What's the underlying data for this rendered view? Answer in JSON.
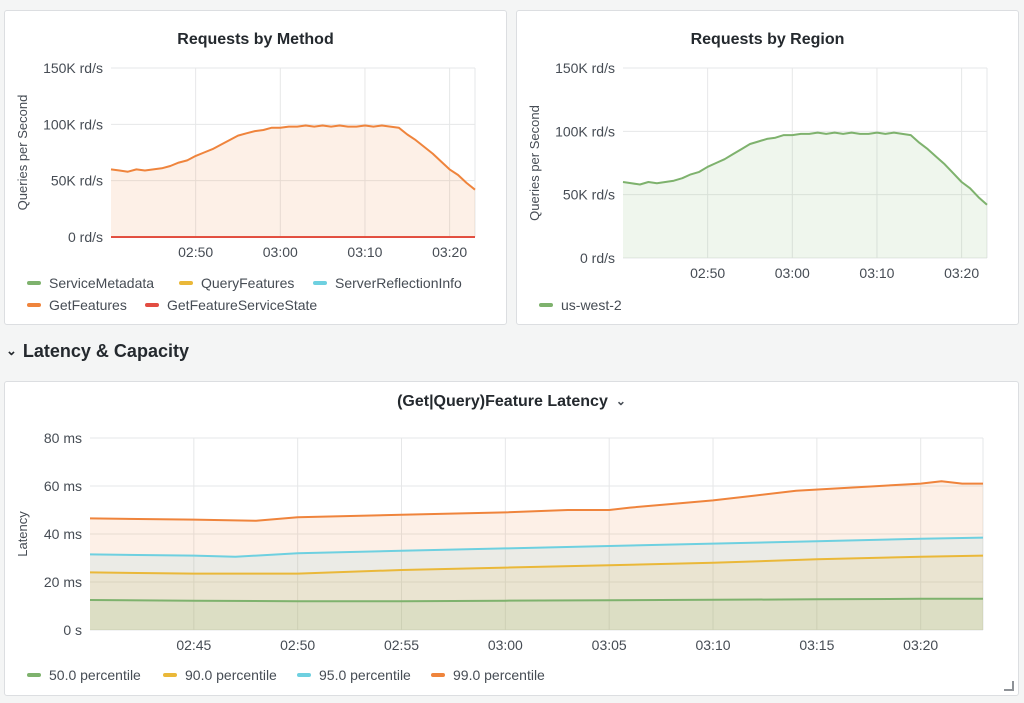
{
  "row": {
    "title": "Latency & Capacity",
    "chevron": "chevron-down-icon"
  },
  "colors": {
    "green": "#7eb26d",
    "yellow": "#eab839",
    "blue": "#6ed0e0",
    "orange": "#ef843c",
    "red": "#e24d42",
    "grid": "#e6e7e8"
  },
  "chart_data": [
    {
      "id": "method",
      "type": "area",
      "title": "Requests by Method",
      "ylabel": "Queries per Second",
      "xlabel": "",
      "ylim": [
        0,
        150000
      ],
      "yticks": [
        "0 rd/s",
        "50K rd/s",
        "100K rd/s",
        "150K rd/s"
      ],
      "xticks": [
        "02:50",
        "03:00",
        "03:10",
        "03:20"
      ],
      "x_range": [
        "02:40",
        "03:23"
      ],
      "grid": true,
      "legend_position": "bottom",
      "series": [
        {
          "name": "ServiceMetadata",
          "color": "#7eb26d",
          "x": [],
          "values": []
        },
        {
          "name": "QueryFeatures",
          "color": "#eab839",
          "x": [],
          "values": []
        },
        {
          "name": "ServerReflectionInfo",
          "color": "#6ed0e0",
          "x": [],
          "values": []
        },
        {
          "name": "GetFeatures",
          "color": "#ef843c",
          "fill": true,
          "x": [
            "02:40",
            "02:41",
            "02:42",
            "02:43",
            "02:44",
            "02:45",
            "02:46",
            "02:47",
            "02:48",
            "02:49",
            "02:50",
            "02:51",
            "02:52",
            "02:53",
            "02:54",
            "02:55",
            "02:56",
            "02:57",
            "02:58",
            "02:59",
            "03:00",
            "03:01",
            "03:02",
            "03:03",
            "03:04",
            "03:05",
            "03:06",
            "03:07",
            "03:08",
            "03:09",
            "03:10",
            "03:11",
            "03:12",
            "03:13",
            "03:14",
            "03:15",
            "03:16",
            "03:17",
            "03:18",
            "03:19",
            "03:20",
            "03:21",
            "03:22",
            "03:23"
          ],
          "values": [
            60000,
            59000,
            58000,
            60000,
            59000,
            60000,
            61000,
            63000,
            66000,
            68000,
            72000,
            75000,
            78000,
            82000,
            86000,
            90000,
            92000,
            94000,
            95000,
            97000,
            97000,
            98000,
            98000,
            99000,
            98000,
            99000,
            98000,
            99000,
            98000,
            98000,
            99000,
            98000,
            99000,
            98000,
            97000,
            91000,
            86000,
            80000,
            74000,
            67000,
            60000,
            55000,
            48000,
            42000
          ]
        },
        {
          "name": "GetFeatureServiceState",
          "color": "#e24d42",
          "x": [
            "02:40",
            "03:23"
          ],
          "values": [
            0,
            0
          ]
        }
      ]
    },
    {
      "id": "region",
      "type": "area",
      "title": "Requests by Region",
      "ylabel": "Queries per Second",
      "xlabel": "",
      "ylim": [
        0,
        150000
      ],
      "yticks": [
        "0 rd/s",
        "50K rd/s",
        "100K rd/s",
        "150K rd/s"
      ],
      "xticks": [
        "02:50",
        "03:00",
        "03:10",
        "03:20"
      ],
      "x_range": [
        "02:40",
        "03:23"
      ],
      "grid": true,
      "legend_position": "bottom",
      "series": [
        {
          "name": "us-west-2",
          "color": "#7eb26d",
          "fill": true,
          "x": [
            "02:40",
            "02:41",
            "02:42",
            "02:43",
            "02:44",
            "02:45",
            "02:46",
            "02:47",
            "02:48",
            "02:49",
            "02:50",
            "02:51",
            "02:52",
            "02:53",
            "02:54",
            "02:55",
            "02:56",
            "02:57",
            "02:58",
            "02:59",
            "03:00",
            "03:01",
            "03:02",
            "03:03",
            "03:04",
            "03:05",
            "03:06",
            "03:07",
            "03:08",
            "03:09",
            "03:10",
            "03:11",
            "03:12",
            "03:13",
            "03:14",
            "03:15",
            "03:16",
            "03:17",
            "03:18",
            "03:19",
            "03:20",
            "03:21",
            "03:22",
            "03:23"
          ],
          "values": [
            60000,
            59000,
            58000,
            60000,
            59000,
            60000,
            61000,
            63000,
            66000,
            68000,
            72000,
            75000,
            78000,
            82000,
            86000,
            90000,
            92000,
            94000,
            95000,
            97000,
            97000,
            98000,
            98000,
            99000,
            98000,
            99000,
            98000,
            99000,
            98000,
            98000,
            99000,
            98000,
            99000,
            98000,
            97000,
            91000,
            86000,
            80000,
            74000,
            67000,
            60000,
            55000,
            48000,
            42000
          ]
        }
      ]
    },
    {
      "id": "latency",
      "type": "area",
      "title": "(Get|Query)Feature Latency",
      "ylabel": "Latency",
      "xlabel": "",
      "ylim": [
        0,
        80
      ],
      "yticks": [
        "0 s",
        "20 ms",
        "40 ms",
        "60 ms",
        "80 ms"
      ],
      "xticks": [
        "02:45",
        "02:50",
        "02:55",
        "03:00",
        "03:05",
        "03:10",
        "03:15",
        "03:20"
      ],
      "x_range": [
        "02:40",
        "03:23"
      ],
      "grid": true,
      "legend_position": "bottom",
      "series": [
        {
          "name": "50.0 percentile",
          "color": "#7eb26d",
          "fill": true,
          "x": [
            "02:40",
            "02:45",
            "02:50",
            "02:55",
            "03:00",
            "03:05",
            "03:10",
            "03:15",
            "03:20",
            "03:23"
          ],
          "values": [
            12.5,
            12.2,
            12,
            12,
            12.2,
            12.4,
            12.6,
            12.8,
            13,
            13
          ]
        },
        {
          "name": "90.0 percentile",
          "color": "#eab839",
          "fill": true,
          "x": [
            "02:40",
            "02:45",
            "02:50",
            "02:55",
            "03:00",
            "03:05",
            "03:10",
            "03:15",
            "03:20",
            "03:23"
          ],
          "values": [
            24,
            23.5,
            23.5,
            25,
            26,
            27,
            28,
            29.5,
            30.5,
            31
          ]
        },
        {
          "name": "95.0 percentile",
          "color": "#6ed0e0",
          "fill": true,
          "x": [
            "02:40",
            "02:45",
            "02:47",
            "02:50",
            "02:55",
            "03:00",
            "03:05",
            "03:10",
            "03:15",
            "03:20",
            "03:23"
          ],
          "values": [
            31.5,
            31,
            30.5,
            32,
            33,
            34,
            35,
            36,
            37,
            38,
            38.5
          ]
        },
        {
          "name": "99.0 percentile",
          "color": "#ef843c",
          "fill": true,
          "x": [
            "02:40",
            "02:45",
            "02:48",
            "02:50",
            "02:55",
            "03:00",
            "03:03",
            "03:05",
            "03:06",
            "03:08",
            "03:10",
            "03:12",
            "03:14",
            "03:16",
            "03:18",
            "03:20",
            "03:21",
            "03:22",
            "03:23"
          ],
          "values": [
            46.5,
            46,
            45.5,
            47,
            48,
            49,
            50,
            50,
            51,
            52.5,
            54,
            56,
            58,
            59,
            60,
            61,
            62,
            61,
            61
          ]
        }
      ]
    }
  ]
}
